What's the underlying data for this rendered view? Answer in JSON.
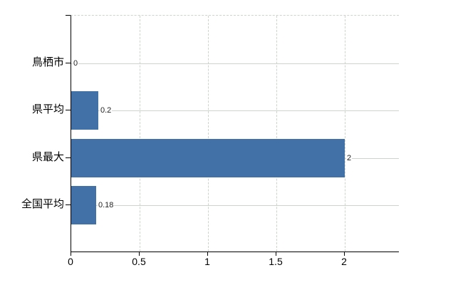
{
  "chart_data": {
    "type": "bar",
    "orientation": "horizontal",
    "title": "",
    "xlabel": "",
    "ylabel": "",
    "categories": [
      "鳥栖市",
      "県平均",
      "県最大",
      "全国平均"
    ],
    "values": [
      0,
      0.2,
      2,
      0.18
    ],
    "data_labels": [
      "0",
      "0.2",
      "2",
      "0.18"
    ],
    "x_ticks": [
      0,
      0.5,
      1,
      1.5,
      2
    ],
    "x_tick_labels": [
      "0",
      "0.5",
      "1",
      "1.5",
      "2"
    ],
    "xlim": [
      0,
      2.4
    ],
    "grid": true,
    "legend": false,
    "colors": {
      "bar": "#4271a7",
      "grid": "#ccd4cc",
      "axis": "#000000",
      "data_label": "#222222",
      "background": "#ffffff"
    }
  }
}
